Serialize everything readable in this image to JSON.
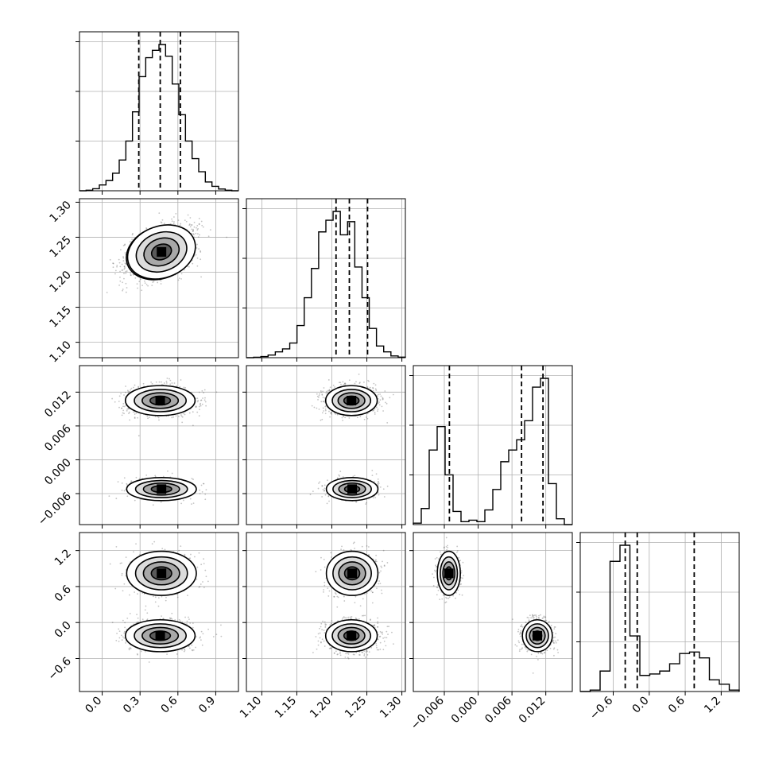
{
  "chart_data": {
    "type": "corner",
    "grid": true,
    "quantile_lines": "dashed",
    "parameters": [
      {
        "range": [
          -0.18,
          1.08
        ],
        "ticks": [
          0.0,
          0.3,
          0.6,
          0.9
        ],
        "tick_labels": [
          "0.0",
          "0.3",
          "0.6",
          "0.9"
        ],
        "quantiles": [
          0.29,
          0.46,
          0.62
        ],
        "histogram": [
          0.0,
          0.004,
          0.014,
          0.04,
          0.07,
          0.12,
          0.21,
          0.34,
          0.54,
          0.78,
          0.91,
          0.96,
          1.0,
          0.92,
          0.73,
          0.52,
          0.34,
          0.22,
          0.13,
          0.06,
          0.03,
          0.012,
          0.004,
          0.0
        ]
      },
      {
        "range": [
          1.078,
          1.305
        ],
        "ticks": [
          1.1,
          1.15,
          1.2,
          1.25,
          1.3
        ],
        "tick_labels": [
          "1.10",
          "1.15",
          "1.20",
          "1.25",
          "1.30"
        ],
        "quantiles": [
          1.206,
          1.225,
          1.251
        ],
        "histogram": [
          0.0,
          0.003,
          0.008,
          0.018,
          0.04,
          0.06,
          0.1,
          0.22,
          0.41,
          0.61,
          0.86,
          0.94,
          1.0,
          0.84,
          0.93,
          0.62,
          0.41,
          0.2,
          0.08,
          0.04,
          0.012,
          0.004
        ]
      },
      {
        "range": [
          -0.0115,
          0.0167
        ],
        "ticks": [
          -0.006,
          0.0,
          0.006,
          0.012
        ],
        "tick_labels": [
          "−0.006",
          "0.000",
          "0.006",
          "0.012"
        ],
        "quantiles": [
          -0.0051,
          0.0077,
          0.0115
        ],
        "histogram": [
          0.01,
          0.11,
          0.51,
          0.67,
          0.34,
          0.09,
          0.02,
          0.03,
          0.02,
          0.1,
          0.24,
          0.43,
          0.51,
          0.58,
          0.71,
          0.94,
          1.0,
          0.28,
          0.04,
          0.0
        ]
      },
      {
        "range": [
          -1.15,
          1.5
        ],
        "ticks": [
          -0.6,
          0.0,
          0.6,
          1.2
        ],
        "tick_labels": [
          "−0.6",
          "0.0",
          "0.6",
          "1.2"
        ],
        "quantiles": [
          -0.4,
          -0.2,
          0.75
        ],
        "histogram": [
          0.0,
          0.01,
          0.14,
          0.89,
          1.0,
          0.38,
          0.11,
          0.12,
          0.14,
          0.19,
          0.26,
          0.27,
          0.23,
          0.08,
          0.05,
          0.01
        ]
      }
    ],
    "y_tick_labels_rows": [
      [
        "1.10",
        "1.15",
        "1.20",
        "1.25",
        "1.30"
      ],
      [
        "−0.006",
        "0.000",
        "0.006",
        "0.012"
      ],
      [
        "−0.6",
        "0.0",
        "0.6",
        "1.2"
      ]
    ],
    "modes": [
      {
        "weight": 0.66,
        "mean": [
          0.46,
          1.228,
          0.0105,
          -0.22
        ],
        "sd": [
          0.135,
          0.018,
          0.0013,
          0.13
        ]
      },
      {
        "weight": 0.34,
        "mean": [
          0.47,
          1.229,
          -0.0052,
          0.82
        ],
        "sd": [
          0.135,
          0.018,
          0.001,
          0.18
        ]
      }
    ],
    "scatter_samples_per_panel": 1400
  }
}
